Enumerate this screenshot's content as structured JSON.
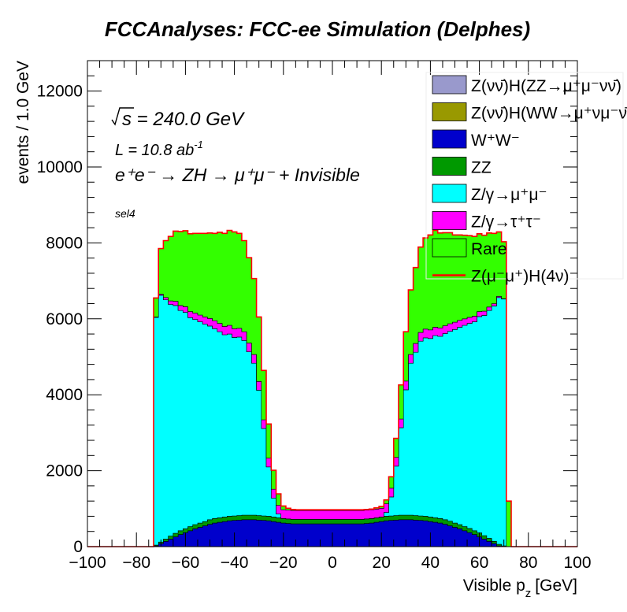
{
  "chart_data": {
    "type": "area",
    "title": "FCCAnalyses: FCC-ee Simulation (Delphes)",
    "xlabel": "Visible p",
    "xlabel_sub": "z",
    "xlabel_unit": "[GeV]",
    "ylabel": "events / 1.0 GeV",
    "xlim": [
      -100,
      100
    ],
    "ylim": [
      0,
      12800
    ],
    "x_ticks": [
      -100,
      -80,
      -60,
      -40,
      -20,
      0,
      20,
      40,
      60,
      80,
      100
    ],
    "y_ticks": [
      0,
      2000,
      4000,
      6000,
      8000,
      10000,
      12000
    ],
    "stacked": true,
    "legend_position": "top-right",
    "annotations": {
      "sqrt_s": "= 240.0 GeV",
      "lumi_prefix": "L = 10.8 ab",
      "lumi_sup": "-1",
      "process": "e⁺e⁻ → ZH → μ⁺μ⁻ + Invisible",
      "selection": "sel4"
    },
    "x": [
      -76,
      -74,
      -72,
      -70,
      -68,
      -66,
      -64,
      -62,
      -60,
      -58,
      -56,
      -54,
      -52,
      -50,
      -48,
      -46,
      -44,
      -42,
      -40,
      -38,
      -36,
      -34,
      -32,
      -30,
      -28,
      -26,
      -24,
      -22,
      -20,
      -18,
      -16,
      -14,
      -12,
      -10,
      -8,
      -6,
      -4,
      -2,
      0,
      2,
      4,
      6,
      8,
      10,
      12,
      14,
      16,
      18,
      20,
      22,
      24,
      26,
      28,
      30,
      32,
      34,
      36,
      38,
      40,
      42,
      44,
      46,
      48,
      50,
      52,
      54,
      56,
      58,
      60,
      62,
      64,
      66,
      68,
      70,
      72,
      74,
      76
    ],
    "series": [
      {
        "name": "Z(νν̄)H(ZZ→μ⁺μ⁻νν̄)",
        "color": "#9999cc",
        "values": [
          0,
          0,
          0,
          0,
          0,
          0,
          0,
          0,
          0,
          0,
          0,
          0,
          0,
          0,
          0,
          0,
          0,
          0,
          0,
          0,
          0,
          0,
          0,
          0,
          0,
          0,
          0,
          0,
          0,
          0,
          0,
          0,
          0,
          0,
          0,
          0,
          0,
          0,
          0,
          0,
          0,
          0,
          0,
          0,
          0,
          0,
          0,
          0,
          0,
          0,
          0,
          0,
          0,
          0,
          0,
          0,
          0,
          0,
          0,
          0,
          0,
          0,
          0,
          0,
          0,
          0,
          0,
          0,
          0,
          0,
          0,
          0,
          0,
          0,
          0,
          0,
          0
        ]
      },
      {
        "name": "Z(νν̄)H(WW→μ⁺νμ⁻ν̄)",
        "color": "#999900",
        "values": [
          0,
          0,
          0,
          0,
          0,
          0,
          0,
          0,
          0,
          0,
          0,
          0,
          0,
          0,
          0,
          0,
          0,
          0,
          0,
          0,
          0,
          0,
          0,
          0,
          0,
          0,
          0,
          0,
          0,
          0,
          0,
          0,
          0,
          0,
          0,
          0,
          0,
          0,
          0,
          0,
          0,
          0,
          0,
          0,
          0,
          0,
          0,
          0,
          0,
          0,
          0,
          0,
          0,
          0,
          0,
          0,
          0,
          0,
          0,
          0,
          0,
          0,
          0,
          0,
          0,
          0,
          0,
          0,
          0,
          0,
          0,
          0,
          0,
          0,
          0,
          0,
          0
        ]
      },
      {
        "name": "W⁺W⁻",
        "color": "#0000cc",
        "values": [
          0,
          0,
          20,
          80,
          140,
          200,
          260,
          320,
          370,
          420,
          470,
          510,
          550,
          590,
          620,
          640,
          660,
          680,
          690,
          700,
          710,
          710,
          710,
          700,
          690,
          680,
          660,
          640,
          620,
          610,
          600,
          600,
          600,
          600,
          600,
          600,
          600,
          600,
          600,
          600,
          600,
          600,
          600,
          600,
          600,
          610,
          620,
          640,
          660,
          680,
          690,
          700,
          710,
          710,
          710,
          700,
          690,
          680,
          660,
          640,
          620,
          590,
          550,
          510,
          470,
          420,
          370,
          320,
          260,
          200,
          140,
          80,
          20,
          0,
          0,
          0,
          0
        ]
      },
      {
        "name": "ZZ",
        "color": "#009900",
        "values": [
          0,
          0,
          20,
          40,
          60,
          80,
          90,
          100,
          100,
          110,
          110,
          110,
          110,
          120,
          120,
          120,
          120,
          120,
          120,
          120,
          120,
          120,
          120,
          120,
          120,
          120,
          120,
          120,
          120,
          120,
          120,
          120,
          120,
          120,
          120,
          120,
          120,
          120,
          120,
          120,
          120,
          120,
          120,
          120,
          120,
          120,
          120,
          120,
          120,
          120,
          120,
          120,
          120,
          120,
          120,
          120,
          120,
          120,
          120,
          120,
          120,
          120,
          120,
          110,
          110,
          110,
          110,
          100,
          100,
          90,
          80,
          60,
          40,
          20,
          0,
          0,
          0
        ]
      },
      {
        "name": "Z/γ→μ⁺μ⁻",
        "color": "#00ffff",
        "values": [
          0,
          0,
          6000,
          6500,
          6300,
          6100,
          6000,
          5800,
          5700,
          5500,
          5400,
          5300,
          5200,
          5100,
          5000,
          4900,
          4800,
          4800,
          4700,
          4700,
          4600,
          4300,
          4000,
          3300,
          2300,
          1300,
          500,
          100,
          0,
          0,
          0,
          0,
          0,
          0,
          0,
          0,
          0,
          0,
          0,
          0,
          0,
          0,
          0,
          0,
          0,
          0,
          0,
          0,
          0,
          100,
          500,
          1300,
          2300,
          3300,
          4000,
          4300,
          4600,
          4700,
          4700,
          4800,
          4800,
          4900,
          5000,
          5100,
          5200,
          5300,
          5400,
          5500,
          5700,
          5800,
          6000,
          6200,
          6500,
          6500,
          0,
          0,
          0
        ]
      },
      {
        "name": "Z/γ→τ⁺τ⁻",
        "color": "#ff00ff",
        "values": [
          0,
          0,
          10,
          30,
          60,
          90,
          110,
          130,
          150,
          160,
          170,
          180,
          190,
          200,
          210,
          220,
          220,
          230,
          230,
          230,
          230,
          230,
          230,
          230,
          230,
          230,
          230,
          230,
          230,
          230,
          230,
          230,
          230,
          230,
          230,
          230,
          230,
          230,
          230,
          230,
          230,
          230,
          230,
          230,
          230,
          230,
          230,
          230,
          230,
          230,
          230,
          230,
          230,
          230,
          230,
          230,
          230,
          230,
          230,
          220,
          220,
          210,
          200,
          190,
          180,
          170,
          160,
          150,
          130,
          110,
          90,
          60,
          30,
          10,
          0,
          0,
          0
        ]
      },
      {
        "name": "Rare",
        "color": "#33ff00",
        "values": [
          0,
          0,
          500,
          1200,
          1500,
          1700,
          1850,
          1950,
          2000,
          2050,
          2100,
          2150,
          2200,
          2250,
          2300,
          2400,
          2450,
          2500,
          2550,
          2500,
          2400,
          2250,
          2000,
          1700,
          1300,
          900,
          500,
          300,
          100,
          50,
          30,
          20,
          20,
          20,
          20,
          20,
          20,
          20,
          20,
          20,
          20,
          20,
          20,
          20,
          20,
          20,
          20,
          30,
          50,
          100,
          300,
          500,
          900,
          1300,
          1700,
          2000,
          2250,
          2400,
          2500,
          2550,
          2500,
          2450,
          2400,
          2300,
          2250,
          2200,
          2150,
          2100,
          2050,
          2000,
          1950,
          1850,
          1700,
          1500,
          1200,
          0,
          0
        ]
      },
      {
        "name": "Z(μ⁻μ⁺)H(4ν)",
        "color": "#ff0000",
        "style": "line",
        "values": [
          0,
          0,
          0,
          0,
          0,
          0,
          0,
          0,
          0,
          0,
          0,
          0,
          0,
          0,
          0,
          0,
          0,
          0,
          0,
          0,
          0,
          0,
          0,
          0,
          0,
          0,
          0,
          0,
          0,
          0,
          0,
          0,
          0,
          0,
          0,
          0,
          0,
          0,
          0,
          0,
          0,
          0,
          0,
          0,
          0,
          0,
          0,
          0,
          0,
          0,
          0,
          0,
          0,
          0,
          0,
          0,
          0,
          0,
          0,
          0,
          0,
          0,
          0,
          0,
          0,
          0,
          0,
          0,
          0,
          0,
          0,
          0,
          0,
          0,
          0,
          0,
          0
        ]
      }
    ]
  }
}
